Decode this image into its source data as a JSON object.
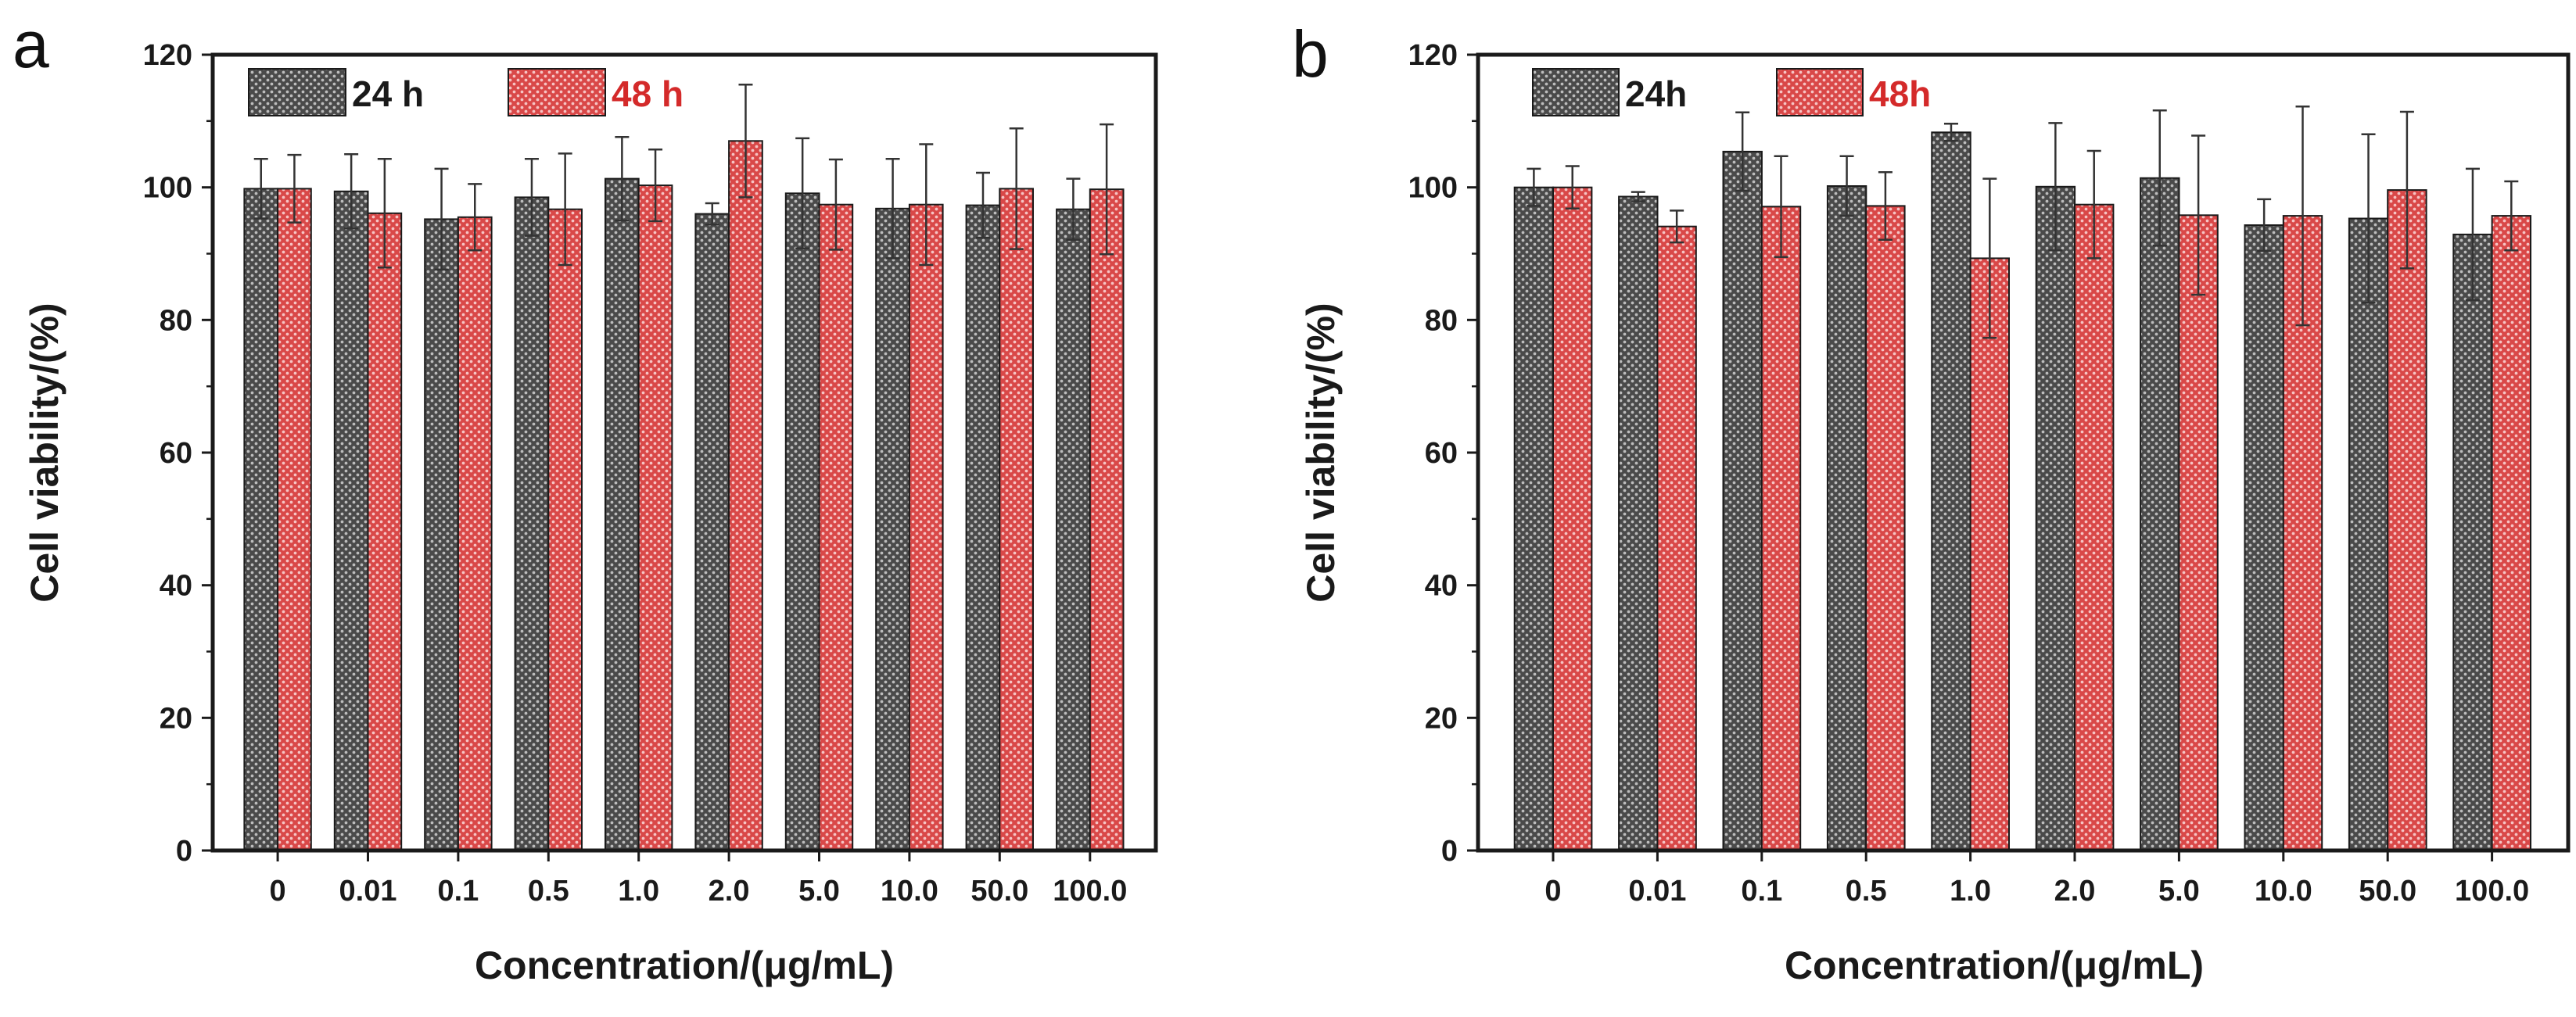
{
  "colors": {
    "series_24h_fill": "#4a4a4a",
    "series_24h_dots": "#bdbdbd",
    "series_48h_fill": "#d94848",
    "series_48h_dots": "#f6c4c4",
    "legend_48h_text": "#d42a2a",
    "axis": "#1a1a1a"
  },
  "chart_data": [
    {
      "panel": "a",
      "type": "bar",
      "xlabel": "Concentration/(μg/mL)",
      "ylabel": "Cell viability/(%)",
      "ylim": [
        0,
        120
      ],
      "yticks": [
        0,
        20,
        40,
        60,
        80,
        100,
        120
      ],
      "categories": [
        "0",
        "0.01",
        "0.1",
        "0.5",
        "1.0",
        "2.0",
        "5.0",
        "10.0",
        "50.0",
        "100.0"
      ],
      "legend_position": "top-left",
      "series": [
        {
          "name": "24 h",
          "values": [
            99.8,
            99.4,
            95.2,
            98.5,
            101.3,
            96.0,
            99.1,
            96.8,
            97.3,
            96.7
          ],
          "errors": [
            4.5,
            5.6,
            7.6,
            5.8,
            6.3,
            1.6,
            8.3,
            7.5,
            4.9,
            4.6
          ]
        },
        {
          "name": "48 h",
          "values": [
            99.8,
            96.1,
            95.5,
            96.7,
            100.3,
            107.0,
            97.4,
            97.4,
            99.8,
            99.7
          ],
          "errors": [
            5.1,
            8.2,
            5.0,
            8.4,
            5.4,
            8.5,
            6.8,
            9.1,
            9.1,
            9.8
          ]
        }
      ]
    },
    {
      "panel": "b",
      "type": "bar",
      "xlabel": "Concentration/(μg/mL)",
      "ylabel": "Cell viability/(%)",
      "ylim": [
        0,
        120
      ],
      "yticks": [
        0,
        20,
        40,
        60,
        80,
        100,
        120
      ],
      "categories": [
        "0",
        "0.01",
        "0.1",
        "0.5",
        "1.0",
        "2.0",
        "5.0",
        "10.0",
        "50.0",
        "100.0"
      ],
      "legend_position": "top-left",
      "series": [
        {
          "name": "24h",
          "values": [
            100.0,
            98.6,
            105.4,
            100.2,
            108.3,
            100.1,
            101.4,
            94.3,
            95.3,
            92.9
          ],
          "errors": [
            2.8,
            0.7,
            5.9,
            4.5,
            1.3,
            9.6,
            10.2,
            3.9,
            12.7,
            9.9
          ]
        },
        {
          "name": "48h",
          "values": [
            100.0,
            94.1,
            97.1,
            97.2,
            89.3,
            97.4,
            95.8,
            95.7,
            99.6,
            95.7
          ],
          "errors": [
            3.2,
            2.4,
            7.6,
            5.1,
            12.0,
            8.1,
            12.0,
            16.5,
            11.8,
            5.2
          ]
        }
      ]
    }
  ]
}
